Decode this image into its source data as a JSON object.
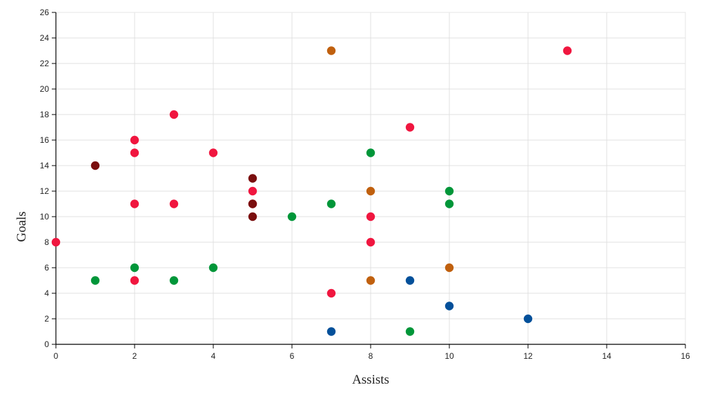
{
  "chart_data": {
    "type": "scatter",
    "title": "",
    "xlabel": "Assists",
    "ylabel": "Goals",
    "xlim": [
      0,
      16
    ],
    "ylim": [
      0,
      26
    ],
    "x_ticks": [
      0,
      2,
      4,
      6,
      8,
      10,
      12,
      14,
      16
    ],
    "y_ticks": [
      0,
      2,
      4,
      6,
      8,
      10,
      12,
      14,
      16,
      18,
      20,
      22,
      24,
      26
    ],
    "grid": true,
    "legend": "none",
    "series": [
      {
        "color": "#f0163f",
        "points": [
          [
            0,
            8
          ],
          [
            2,
            16
          ],
          [
            2,
            15
          ],
          [
            2,
            11
          ],
          [
            2,
            5
          ],
          [
            3,
            18
          ],
          [
            3,
            11
          ],
          [
            4,
            15
          ],
          [
            5,
            12
          ],
          [
            5,
            11
          ],
          [
            7,
            4
          ],
          [
            8,
            10
          ],
          [
            8,
            8
          ],
          [
            9,
            17
          ],
          [
            13,
            23
          ]
        ]
      },
      {
        "color": "#7a0e0e",
        "points": [
          [
            1,
            14
          ],
          [
            5,
            13
          ],
          [
            5,
            11
          ],
          [
            5,
            10
          ]
        ]
      },
      {
        "color": "#009639",
        "points": [
          [
            1,
            5
          ],
          [
            2,
            6
          ],
          [
            3,
            5
          ],
          [
            4,
            6
          ],
          [
            6,
            10
          ],
          [
            7,
            11
          ],
          [
            8,
            15
          ],
          [
            9,
            1
          ],
          [
            10,
            12
          ],
          [
            10,
            11
          ]
        ]
      },
      {
        "color": "#c0600e",
        "points": [
          [
            7,
            23
          ],
          [
            8,
            12
          ],
          [
            8,
            5
          ],
          [
            10,
            6
          ]
        ]
      },
      {
        "color": "#03509a",
        "points": [
          [
            7,
            1
          ],
          [
            9,
            5
          ],
          [
            10,
            3
          ],
          [
            12,
            2
          ]
        ]
      }
    ]
  }
}
